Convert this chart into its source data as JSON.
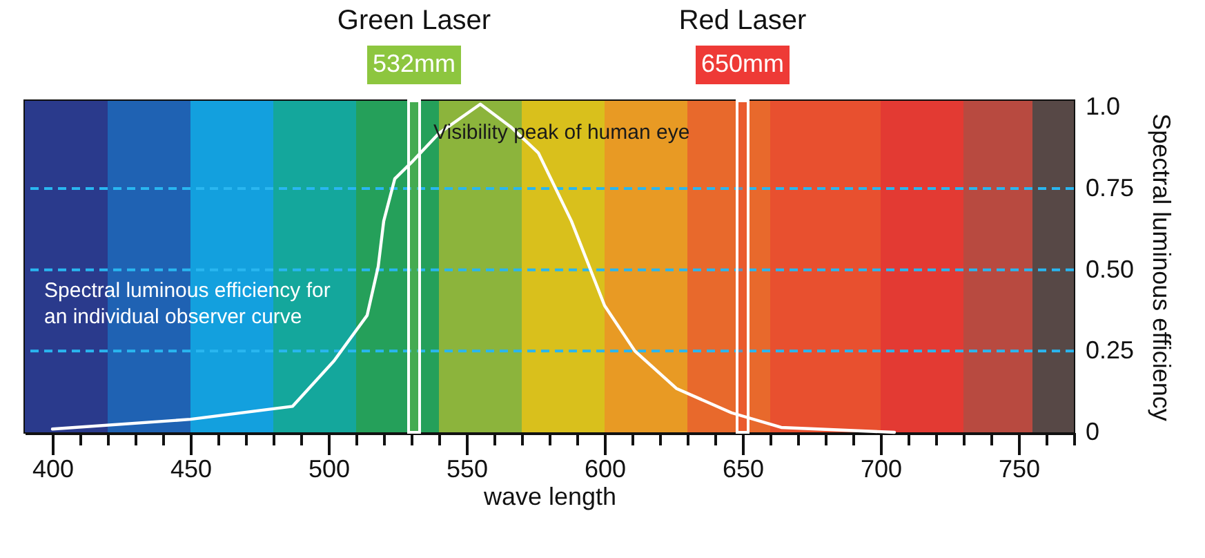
{
  "chart_data": {
    "type": "line",
    "xlabel": "wave length",
    "ylabel": "Spectral luminous efficiency",
    "x": [
      400,
      450,
      487,
      502,
      514,
      518,
      520,
      524,
      530,
      540,
      555,
      566,
      576,
      588,
      600,
      611,
      626,
      646,
      664,
      705
    ],
    "series": [
      {
        "color": "#ffffff",
        "values": [
          0.01,
          0.04,
          0.08,
          0.22,
          0.36,
          0.51,
          0.65,
          0.78,
          0.83,
          0.92,
          1.01,
          0.94,
          0.86,
          0.65,
          0.39,
          0.25,
          0.135,
          0.06,
          0.015,
          0.0
        ]
      }
    ],
    "xlim": [
      390,
      770
    ],
    "xticks": [
      400,
      {
        "value": 410,
        "label": null
      },
      {
        "value": 420,
        "label": null
      },
      {
        "value": 430,
        "label": null
      },
      {
        "value": 440,
        "label": null
      },
      450,
      {
        "value": 460,
        "label": null
      },
      {
        "value": 470,
        "label": null
      },
      {
        "value": 480,
        "label": null
      },
      {
        "value": 490,
        "label": null
      },
      500,
      {
        "value": 510,
        "label": null
      },
      {
        "value": 520,
        "label": null
      },
      {
        "value": 530,
        "label": null
      },
      {
        "value": 540,
        "label": null
      },
      550,
      {
        "value": 560,
        "label": null
      },
      {
        "value": 570,
        "label": null
      },
      {
        "value": 580,
        "label": null
      },
      {
        "value": 590,
        "label": null
      },
      600,
      {
        "value": 610,
        "label": null
      },
      {
        "value": 620,
        "label": null
      },
      {
        "value": 630,
        "label": null
      },
      {
        "value": 640,
        "label": null
      },
      650,
      {
        "value": 660,
        "label": null
      },
      {
        "value": 670,
        "label": null
      },
      {
        "value": 680,
        "label": null
      },
      {
        "value": 690,
        "label": null
      },
      700,
      {
        "value": 710,
        "label": null
      },
      {
        "value": 720,
        "label": null
      },
      {
        "value": 730,
        "label": null
      },
      {
        "value": 740,
        "label": null
      },
      750,
      {
        "value": 760,
        "label": null
      },
      {
        "value": 770,
        "label": null
      }
    ],
    "ylim": [
      0,
      1.02
    ],
    "yticks": [
      0,
      0.25,
      {
        "value": 0.5,
        "label": "0.50"
      },
      0.75,
      {
        "value": 1,
        "label": "1.0"
      }
    ],
    "grid": false,
    "marker": "none",
    "ref_lines": [
      {
        "axis": "y",
        "value": 0.25,
        "color": "#29b6f0",
        "line_style": "dashed"
      },
      {
        "axis": "y",
        "value": 0.5,
        "color": "#29b6f0",
        "line_style": "dashed"
      },
      {
        "axis": "y",
        "value": 0.75,
        "color": "#29b6f0",
        "line_style": "dashed"
      }
    ],
    "bands": [
      {
        "axis": "x",
        "from": 390,
        "to": 420,
        "color": "#2a3a8c"
      },
      {
        "axis": "x",
        "from": 420,
        "to": 450,
        "color": "#1f62b3"
      },
      {
        "axis": "x",
        "from": 450,
        "to": 480,
        "color": "#13a0de"
      },
      {
        "axis": "x",
        "from": 480,
        "to": 510,
        "color": "#14a79c"
      },
      {
        "axis": "x",
        "from": 510,
        "to": 540,
        "color": "#25a05a"
      },
      {
        "axis": "x",
        "from": 540,
        "to": 570,
        "color": "#8cb43c"
      },
      {
        "axis": "x",
        "from": 570,
        "to": 600,
        "color": "#d9c01c"
      },
      {
        "axis": "x",
        "from": 600,
        "to": 630,
        "color": "#e89a24"
      },
      {
        "axis": "x",
        "from": 630,
        "to": 660,
        "color": "#e8692c"
      },
      {
        "axis": "x",
        "from": 660,
        "to": 700,
        "color": "#e8502f"
      },
      {
        "axis": "x",
        "from": 700,
        "to": 730,
        "color": "#e33a33"
      },
      {
        "axis": "x",
        "from": 730,
        "to": 755,
        "color": "#b84a40"
      },
      {
        "axis": "x",
        "from": 755,
        "to": 770,
        "color": "#574846"
      },
      {
        "axis": "x",
        "from": 529,
        "to": 533,
        "label": "532mm",
        "color": "#8dc63f"
      },
      {
        "axis": "x",
        "from": 648,
        "to": 652,
        "label": "650mm",
        "color": "#ee3a36"
      }
    ],
    "annotations": [
      "Green Laser",
      "Red Laser",
      {
        "text": "Visibility peak of human eye",
        "x": 555,
        "y": 1.0
      },
      "Spectral luminous efficiency for\nan individual observer curve"
    ]
  }
}
